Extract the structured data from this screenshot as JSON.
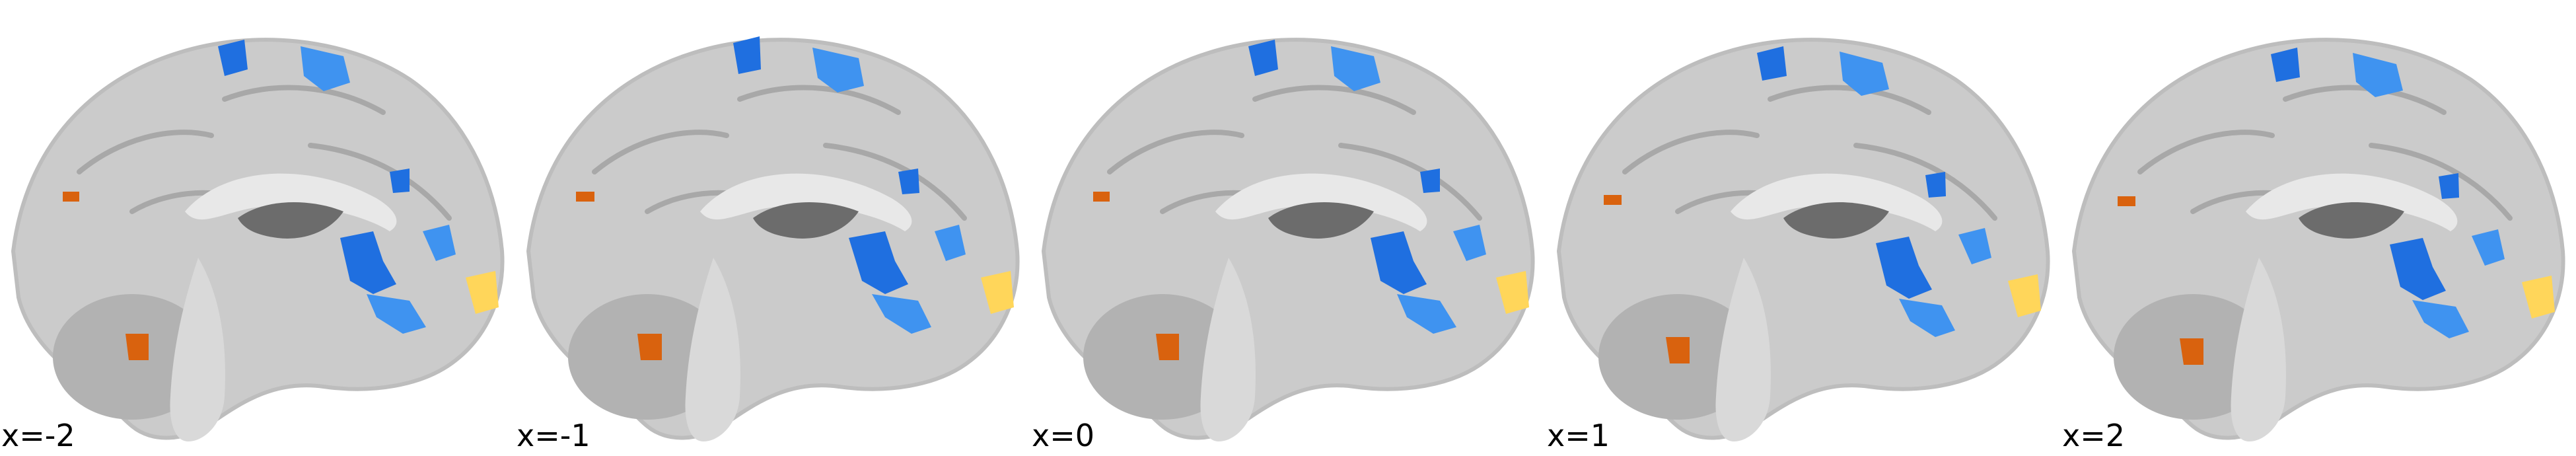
{
  "figure": {
    "slices": [
      {
        "label": "x=-2"
      },
      {
        "label": "x=-1"
      },
      {
        "label": "x=0"
      },
      {
        "label": "x=1"
      },
      {
        "label": "x=2"
      }
    ]
  },
  "colors": {
    "background": "#ffffff",
    "brain_light": "#cfcfcf",
    "brain_mid": "#b8b8b8",
    "brain_dark": "#5a5a5a",
    "white_matter": "#e6e6e6",
    "activation_negative": "#1f6fe0",
    "activation_negative_light": "#3f93f0",
    "activation_positive": "#d9620e",
    "activation_positive_light": "#ffd65a"
  }
}
